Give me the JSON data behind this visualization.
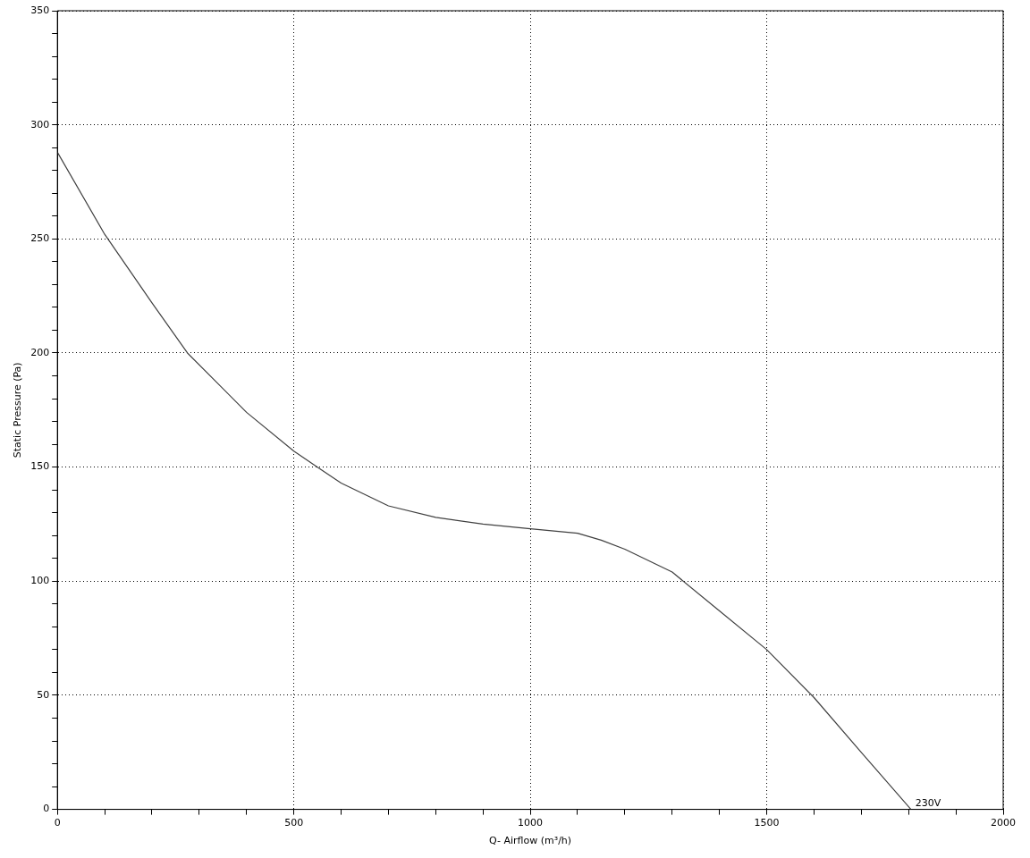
{
  "chart_data": {
    "type": "line",
    "xlabel": "Q- Airflow (m³/h)",
    "ylabel": "Static Pressure (Pa)",
    "x": [
      0,
      100,
      200,
      275,
      400,
      500,
      550,
      600,
      700,
      800,
      900,
      1000,
      1100,
      1150,
      1200,
      1300,
      1400,
      1500,
      1600,
      1700,
      1805
    ],
    "series": [
      {
        "color": "#404040",
        "values": [
          288,
          252,
          222,
          200,
          174,
          157,
          150,
          143,
          133,
          128,
          125,
          123,
          121,
          118,
          114,
          104,
          87,
          70,
          49,
          25,
          0
        ]
      }
    ],
    "xlim": [
      0,
      2000
    ],
    "xticks": [
      0,
      {
        "value": 100,
        "label": null
      },
      {
        "value": 200,
        "label": null
      },
      {
        "value": 300,
        "label": null
      },
      {
        "value": 400,
        "label": null
      },
      500,
      {
        "value": 600,
        "label": null
      },
      {
        "value": 700,
        "label": null
      },
      {
        "value": 800,
        "label": null
      },
      {
        "value": 900,
        "label": null
      },
      1000,
      {
        "value": 1100,
        "label": null
      },
      {
        "value": 1200,
        "label": null
      },
      {
        "value": 1300,
        "label": null
      },
      {
        "value": 1400,
        "label": null
      },
      1500,
      {
        "value": 1600,
        "label": null
      },
      {
        "value": 1700,
        "label": null
      },
      {
        "value": 1800,
        "label": null
      },
      {
        "value": 1900,
        "label": null
      },
      2000
    ],
    "ylim": [
      0,
      350
    ],
    "yticks": [
      0,
      {
        "value": 10,
        "label": null
      },
      {
        "value": 20,
        "label": null
      },
      {
        "value": 30,
        "label": null
      },
      {
        "value": 40,
        "label": null
      },
      50,
      {
        "value": 60,
        "label": null
      },
      {
        "value": 70,
        "label": null
      },
      {
        "value": 80,
        "label": null
      },
      {
        "value": 90,
        "label": null
      },
      100,
      {
        "value": 110,
        "label": null
      },
      {
        "value": 120,
        "label": null
      },
      {
        "value": 130,
        "label": null
      },
      {
        "value": 140,
        "label": null
      },
      150,
      {
        "value": 160,
        "label": null
      },
      {
        "value": 170,
        "label": null
      },
      {
        "value": 180,
        "label": null
      },
      {
        "value": 190,
        "label": null
      },
      200,
      {
        "value": 210,
        "label": null
      },
      {
        "value": 220,
        "label": null
      },
      {
        "value": 230,
        "label": null
      },
      {
        "value": 240,
        "label": null
      },
      250,
      {
        "value": 260,
        "label": null
      },
      {
        "value": 270,
        "label": null
      },
      {
        "value": 280,
        "label": null
      },
      {
        "value": 290,
        "label": null
      },
      300,
      {
        "value": 310,
        "label": null
      },
      {
        "value": 320,
        "label": null
      },
      {
        "value": 330,
        "label": null
      },
      {
        "value": 340,
        "label": null
      },
      350
    ],
    "grid": true,
    "marker": "none",
    "line_style": "solid",
    "legend": false,
    "annotations": [
      {
        "text": "230V",
        "x": 1805,
        "y": 0
      }
    ]
  }
}
